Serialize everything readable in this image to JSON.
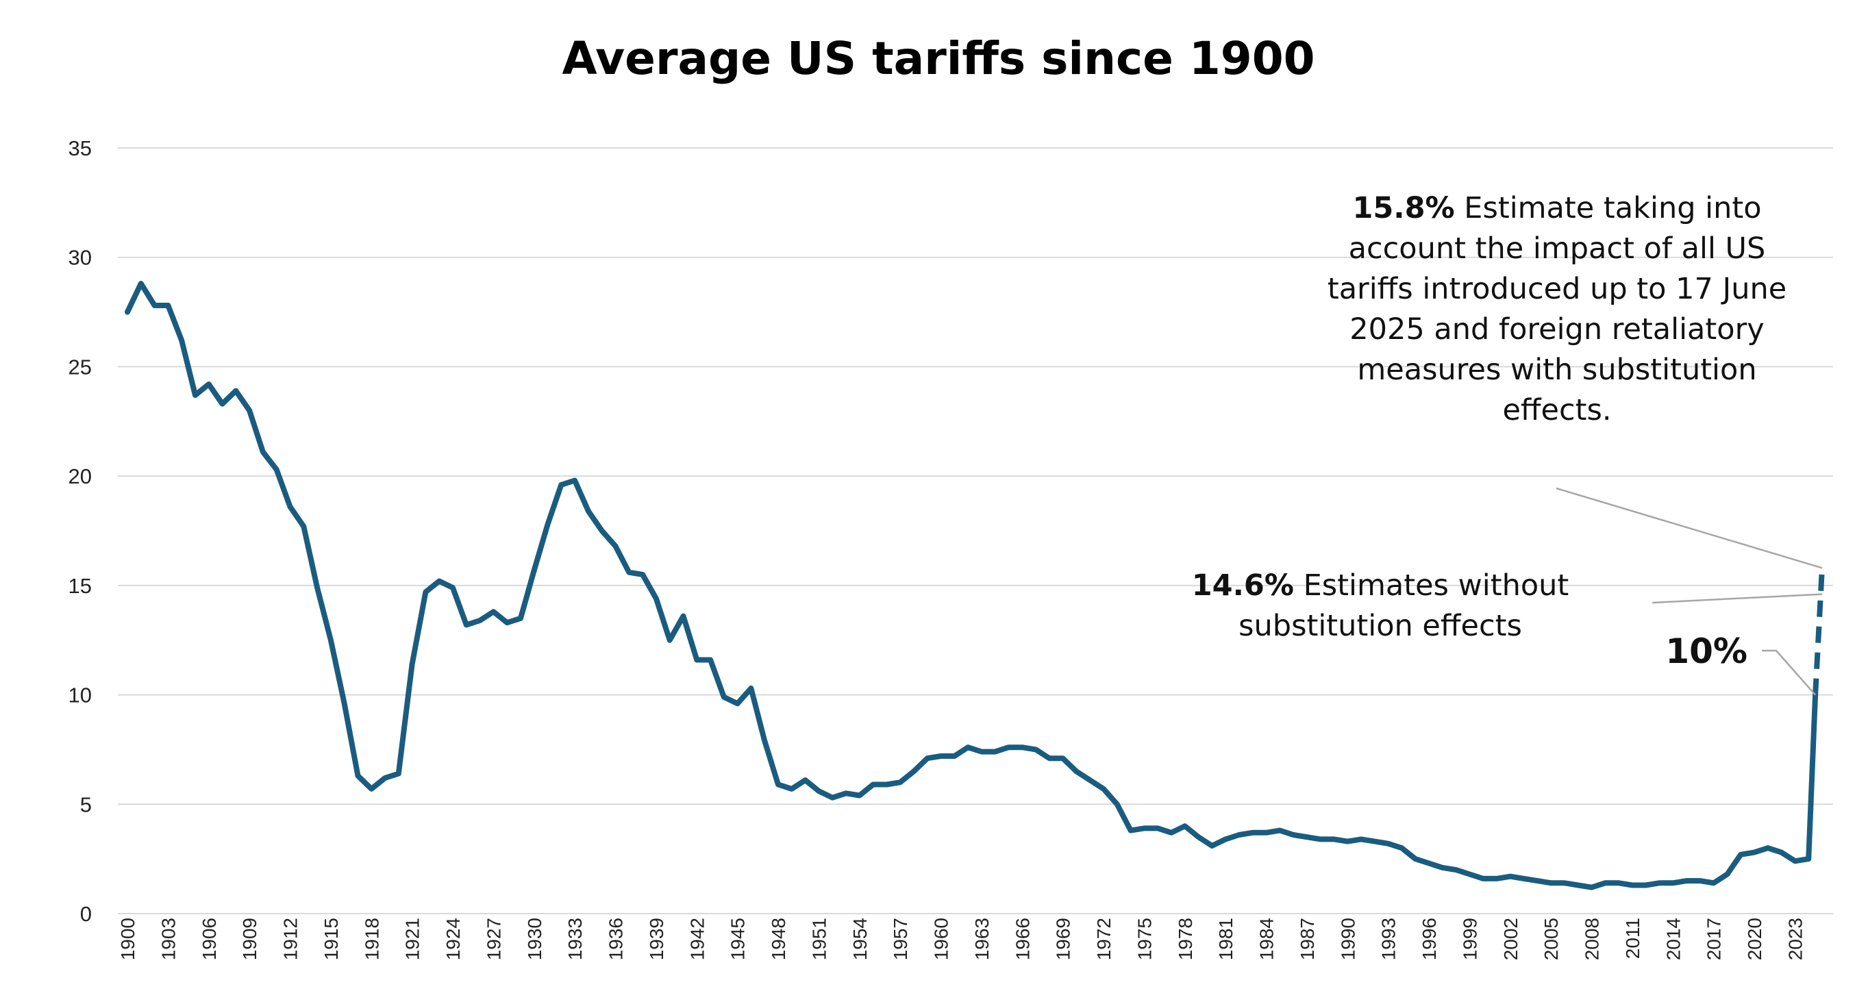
{
  "chart_data": {
    "type": "line",
    "title": "Average US tariffs since 1900",
    "xlabel": "",
    "ylabel": "",
    "ylim": [
      0,
      35
    ],
    "yticks": [
      0,
      5,
      10,
      15,
      20,
      25,
      30,
      35
    ],
    "xlim": [
      1900,
      2025
    ],
    "xtick_step": 3,
    "grid": true,
    "legend": "none",
    "line_color": "#1a5c80",
    "series": [
      {
        "style": "solid",
        "x": [
          1900,
          1901,
          1902,
          1903,
          1904,
          1905,
          1906,
          1907,
          1908,
          1909,
          1910,
          1911,
          1912,
          1913,
          1914,
          1915,
          1916,
          1917,
          1918,
          1919,
          1920,
          1921,
          1922,
          1923,
          1924,
          1925,
          1926,
          1927,
          1928,
          1929,
          1930,
          1931,
          1932,
          1933,
          1934,
          1935,
          1936,
          1937,
          1938,
          1939,
          1940,
          1941,
          1942,
          1943,
          1944,
          1945,
          1946,
          1947,
          1948,
          1949,
          1950,
          1951,
          1952,
          1953,
          1954,
          1955,
          1956,
          1957,
          1958,
          1959,
          1960,
          1961,
          1962,
          1963,
          1964,
          1965,
          1966,
          1967,
          1968,
          1969,
          1970,
          1971,
          1972,
          1973,
          1974,
          1975,
          1976,
          1977,
          1978,
          1979,
          1980,
          1981,
          1982,
          1983,
          1984,
          1985,
          1986,
          1987,
          1988,
          1989,
          1990,
          1991,
          1992,
          1993,
          1994,
          1995,
          1996,
          1997,
          1998,
          1999,
          2000,
          2001,
          2002,
          2003,
          2004,
          2005,
          2006,
          2007,
          2008,
          2009,
          2010,
          2011,
          2012,
          2013,
          2014,
          2015,
          2016,
          2017,
          2018,
          2019,
          2020,
          2021,
          2022,
          2023,
          2024
        ],
        "values": [
          27.5,
          28.8,
          27.8,
          27.8,
          26.2,
          23.7,
          24.2,
          23.3,
          23.9,
          23.0,
          21.1,
          20.3,
          18.6,
          17.7,
          14.9,
          12.5,
          9.6,
          6.3,
          5.7,
          6.2,
          6.4,
          11.4,
          14.7,
          15.2,
          14.9,
          13.2,
          13.4,
          13.8,
          13.3,
          13.5,
          15.7,
          17.8,
          19.6,
          19.8,
          18.4,
          17.5,
          16.8,
          15.6,
          15.5,
          14.4,
          12.5,
          13.6,
          11.6,
          11.6,
          9.9,
          9.6,
          10.3,
          7.9,
          5.9,
          5.7,
          6.1,
          5.6,
          5.3,
          5.5,
          5.4,
          5.9,
          5.9,
          6.0,
          6.5,
          7.1,
          7.2,
          7.2,
          7.6,
          7.4,
          7.4,
          7.6,
          7.6,
          7.5,
          7.1,
          7.1,
          6.5,
          6.1,
          5.7,
          5.0,
          3.8,
          3.9,
          3.9,
          3.7,
          4.0,
          3.5,
          3.1,
          3.4,
          3.6,
          3.7,
          3.7,
          3.8,
          3.6,
          3.5,
          3.4,
          3.4,
          3.3,
          3.4,
          3.3,
          3.2,
          3.0,
          2.5,
          2.3,
          2.1,
          2.0,
          1.8,
          1.6,
          1.6,
          1.7,
          1.6,
          1.5,
          1.4,
          1.4,
          1.3,
          1.2,
          1.4,
          1.4,
          1.3,
          1.3,
          1.4,
          1.4,
          1.5,
          1.5,
          1.4,
          1.8,
          2.7,
          2.8,
          3.0,
          2.8,
          2.4,
          2.5
        ]
      },
      {
        "style": "solid",
        "x": [
          2024,
          2024.5
        ],
        "values": [
          2.5,
          10
        ]
      },
      {
        "style": "dashed",
        "x": [
          2024.5,
          2025
        ],
        "values": [
          10,
          15.8
        ]
      }
    ],
    "annotations": [
      {
        "bold": "15.8%",
        "lines": [
          " Estimate taking into",
          "account the impact of all US",
          "tariffs introduced up to 17 June",
          "2025 and foreign retaliatory",
          "measures with substitution",
          "effects."
        ],
        "x": 2025,
        "y": 15.8
      },
      {
        "bold": "14.6%",
        "lines": [
          " Estimates without",
          "substitution effects"
        ],
        "x": 2025,
        "y": 14.6
      },
      {
        "bold": "10%",
        "lines": [],
        "x": 2024.5,
        "y": 10
      }
    ]
  }
}
